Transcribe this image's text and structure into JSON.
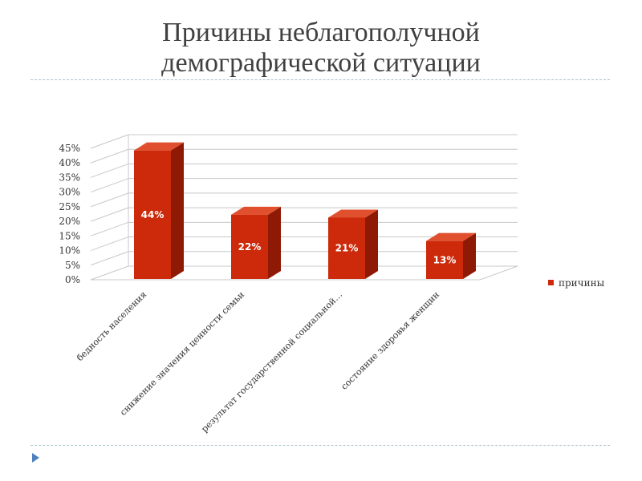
{
  "slide": {
    "title_line1": "Причины неблагополучной",
    "title_line2": "демографической ситуации"
  },
  "chart_data": {
    "type": "bar",
    "categories": [
      "бедность населения",
      "снижение значения ценности семьи",
      "результат государственной социальной…",
      "состояние здоровья женщин"
    ],
    "series": [
      {
        "name": "причины",
        "values": [
          44,
          22,
          21,
          13
        ]
      }
    ],
    "data_labels": [
      "44%",
      "22%",
      "21%",
      "13%"
    ],
    "yticks": [
      "0%",
      "5%",
      "10%",
      "15%",
      "20%",
      "25%",
      "30%",
      "35%",
      "40%",
      "45%"
    ],
    "ylim": [
      0,
      45
    ],
    "ystep": 5,
    "title": "",
    "xlabel": "",
    "ylabel": "",
    "grid": true,
    "legend": "right",
    "colors": {
      "front": "#cc2a0a",
      "top": "#e0502e",
      "side": "#8e1a05",
      "grid": "#c8c8c8"
    }
  }
}
